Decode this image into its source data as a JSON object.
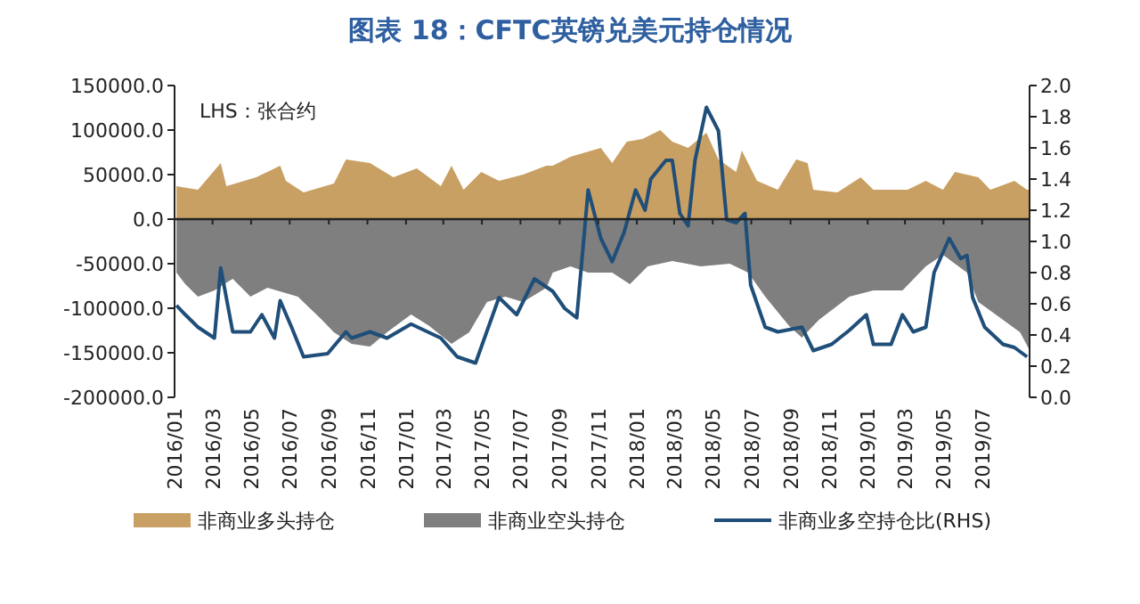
{
  "chart_data": {
    "type": "area",
    "title": "图表 18：CFTC英镑兑美元持仓情况",
    "annotations": [
      "LHS：张合约"
    ],
    "legend": "bottom",
    "xlim": [
      "2016-01-01",
      "2019-09-14"
    ],
    "xticks": [
      {
        "value": "2016-01-01",
        "label": "2016/01"
      },
      {
        "value": "2016-03-01",
        "label": "2016/03"
      },
      {
        "value": "2016-05-01",
        "label": "2016/05"
      },
      {
        "value": "2016-07-01",
        "label": "2016/07"
      },
      {
        "value": "2016-09-01",
        "label": "2016/09"
      },
      {
        "value": "2016-11-01",
        "label": "2016/11"
      },
      {
        "value": "2017-01-01",
        "label": "2017/01"
      },
      {
        "value": "2017-03-01",
        "label": "2017/03"
      },
      {
        "value": "2017-05-01",
        "label": "2017/05"
      },
      {
        "value": "2017-07-01",
        "label": "2017/07"
      },
      {
        "value": "2017-09-01",
        "label": "2017/09"
      },
      {
        "value": "2017-11-01",
        "label": "2017/11"
      },
      {
        "value": "2018-01-01",
        "label": "2018/01"
      },
      {
        "value": "2018-03-01",
        "label": "2018/03"
      },
      {
        "value": "2018-05-01",
        "label": "2018/05"
      },
      {
        "value": "2018-07-01",
        "label": "2018/07"
      },
      {
        "value": "2018-09-01",
        "label": "2018/09"
      },
      {
        "value": "2018-11-01",
        "label": "2018/11"
      },
      {
        "value": "2019-01-01",
        "label": "2019/01"
      },
      {
        "value": "2019-03-01",
        "label": "2019/03"
      },
      {
        "value": "2019-05-01",
        "label": "2019/05"
      },
      {
        "value": "2019-07-01",
        "label": "2019/07"
      }
    ],
    "ylim": [
      -200000,
      150000
    ],
    "yticks": [
      {
        "value": -200000,
        "label": "-200000.0"
      },
      {
        "value": -150000,
        "label": "-150000.0"
      },
      {
        "value": -100000,
        "label": "-100000.0"
      },
      {
        "value": -50000,
        "label": "-50000.0"
      },
      {
        "value": 0,
        "label": "0.0"
      },
      {
        "value": 50000,
        "label": "50000.0"
      },
      {
        "value": 100000,
        "label": "100000.0"
      },
      {
        "value": 150000,
        "label": "150000.0"
      }
    ],
    "y2lim": [
      0,
      2
    ],
    "y2ticks": [
      {
        "value": 0,
        "label": "0.0"
      },
      {
        "value": 0.2,
        "label": "0.2"
      },
      {
        "value": 0.4,
        "label": "0.4"
      },
      {
        "value": 0.6,
        "label": "0.6"
      },
      {
        "value": 0.8,
        "label": "0.8"
      },
      {
        "value": 1,
        "label": "1.0"
      },
      {
        "value": 1.2,
        "label": "1.2"
      },
      {
        "value": 1.4,
        "label": "1.4"
      },
      {
        "value": 1.6,
        "label": "1.6"
      },
      {
        "value": 1.8,
        "label": "1.8"
      },
      {
        "value": 2,
        "label": "2.0"
      }
    ],
    "series": [
      {
        "name": "非商业多头持仓",
        "color": "#c9a063",
        "x": [
          "2016-01-04",
          "2016-02-07",
          "2016-03-14",
          "2016-03-23",
          "2016-05-09",
          "2016-06-16",
          "2016-06-25",
          "2016-07-23",
          "2016-09-09",
          "2016-09-28",
          "2016-11-05",
          "2016-12-12",
          "2017-01-18",
          "2017-02-25",
          "2017-03-14",
          "2017-04-02",
          "2017-04-30",
          "2017-05-28",
          "2017-07-05",
          "2017-08-11",
          "2017-08-21",
          "2017-09-18",
          "2017-11-05",
          "2017-11-23",
          "2017-12-16",
          "2018-01-10",
          "2018-02-07",
          "2018-02-26",
          "2018-03-23",
          "2018-04-21",
          "2018-05-10",
          "2018-06-07",
          "2018-06-16",
          "2018-07-10",
          "2018-08-12",
          "2018-09-10",
          "2018-09-28",
          "2018-10-07",
          "2018-11-14",
          "2018-12-21",
          "2019-01-10",
          "2019-03-05",
          "2019-04-03",
          "2019-04-30",
          "2019-05-19",
          "2019-06-25",
          "2019-07-14",
          "2019-08-21",
          "2019-09-10",
          "2019-09-14"
        ],
        "values": [
          37000,
          33000,
          63000,
          37000,
          47000,
          60000,
          43000,
          30000,
          40000,
          67000,
          63000,
          47000,
          57000,
          37000,
          60000,
          33000,
          53000,
          43000,
          50000,
          60000,
          60000,
          70000,
          80000,
          63000,
          87000,
          90000,
          100000,
          87000,
          80000,
          97000,
          67000,
          53000,
          77000,
          43000,
          33000,
          67000,
          63000,
          33000,
          30000,
          47000,
          33000,
          33000,
          43000,
          33000,
          53000,
          47000,
          33000,
          43000,
          33000,
          33000
        ]
      },
      {
        "name": "非商业空头持仓",
        "color": "#7f7f7f",
        "x": [
          "2016-01-04",
          "2016-01-18",
          "2016-02-07",
          "2016-03-04",
          "2016-04-02",
          "2016-04-30",
          "2016-05-27",
          "2016-07-14",
          "2016-08-21",
          "2016-09-09",
          "2016-10-07",
          "2016-11-05",
          "2016-12-02",
          "2017-01-09",
          "2017-02-07",
          "2017-03-14",
          "2017-04-11",
          "2017-05-09",
          "2017-06-07",
          "2017-07-05",
          "2017-08-11",
          "2017-08-21",
          "2017-09-18",
          "2017-10-16",
          "2017-11-23",
          "2017-12-21",
          "2018-01-18",
          "2018-02-26",
          "2018-04-12",
          "2018-05-28",
          "2018-06-26",
          "2018-07-23",
          "2018-08-30",
          "2018-09-19",
          "2018-10-16",
          "2018-12-03",
          "2019-01-10",
          "2019-02-25",
          "2019-04-03",
          "2019-04-30",
          "2019-06-07",
          "2019-06-25",
          "2019-08-03",
          "2019-08-30",
          "2019-09-14"
        ],
        "values": [
          -60000,
          -73000,
          -87000,
          -80000,
          -67000,
          -87000,
          -77000,
          -87000,
          -113000,
          -127000,
          -140000,
          -143000,
          -127000,
          -107000,
          -120000,
          -140000,
          -127000,
          -93000,
          -87000,
          -93000,
          -77000,
          -60000,
          -53000,
          -60000,
          -60000,
          -73000,
          -53000,
          -47000,
          -53000,
          -50000,
          -60000,
          -87000,
          -120000,
          -133000,
          -113000,
          -87000,
          -80000,
          -80000,
          -53000,
          -40000,
          -60000,
          -93000,
          -113000,
          -127000,
          -147000
        ]
      },
      {
        "name": "非商业多空持仓比(RHS)",
        "type": "line",
        "axis": "y2",
        "color": "#1f4e79",
        "x": [
          "2016-01-04",
          "2016-01-18",
          "2016-02-07",
          "2016-03-04",
          "2016-03-14",
          "2016-04-02",
          "2016-04-30",
          "2016-05-18",
          "2016-06-07",
          "2016-06-16",
          "2016-07-04",
          "2016-07-23",
          "2016-08-30",
          "2016-09-28",
          "2016-10-07",
          "2016-11-05",
          "2016-12-02",
          "2017-01-09",
          "2017-02-25",
          "2017-03-23",
          "2017-04-21",
          "2017-05-28",
          "2017-06-25",
          "2017-07-23",
          "2017-08-21",
          "2017-09-09",
          "2017-09-28",
          "2017-10-16",
          "2017-11-05",
          "2017-11-23",
          "2017-12-12",
          "2017-12-30",
          "2018-01-14",
          "2018-01-23",
          "2018-02-16",
          "2018-02-26",
          "2018-03-10",
          "2018-03-23",
          "2018-04-03",
          "2018-04-21",
          "2018-05-10",
          "2018-05-23",
          "2018-06-07",
          "2018-06-21",
          "2018-06-30",
          "2018-07-23",
          "2018-08-12",
          "2018-09-19",
          "2018-10-07",
          "2018-11-05",
          "2018-12-03",
          "2018-12-30",
          "2019-01-10",
          "2019-02-07",
          "2019-02-25",
          "2019-03-14",
          "2019-04-03",
          "2019-04-16",
          "2019-05-10",
          "2019-05-28",
          "2019-06-07",
          "2019-06-16",
          "2019-07-05",
          "2019-08-03",
          "2019-08-21",
          "2019-09-10"
        ],
        "values": [
          0.59,
          0.53,
          0.45,
          0.38,
          0.83,
          0.42,
          0.42,
          0.53,
          0.38,
          0.62,
          0.45,
          0.26,
          0.28,
          0.42,
          0.38,
          0.42,
          0.38,
          0.47,
          0.38,
          0.26,
          0.22,
          0.64,
          0.53,
          0.76,
          0.68,
          0.57,
          0.51,
          1.33,
          1.02,
          0.87,
          1.06,
          1.33,
          1.2,
          1.4,
          1.52,
          1.52,
          1.18,
          1.1,
          1.52,
          1.86,
          1.71,
          1.14,
          1.12,
          1.18,
          0.72,
          0.45,
          0.42,
          0.45,
          0.3,
          0.34,
          0.43,
          0.53,
          0.34,
          0.34,
          0.53,
          0.42,
          0.45,
          0.8,
          1.02,
          0.89,
          0.91,
          0.64,
          0.45,
          0.34,
          0.32,
          0.26
        ]
      }
    ]
  }
}
